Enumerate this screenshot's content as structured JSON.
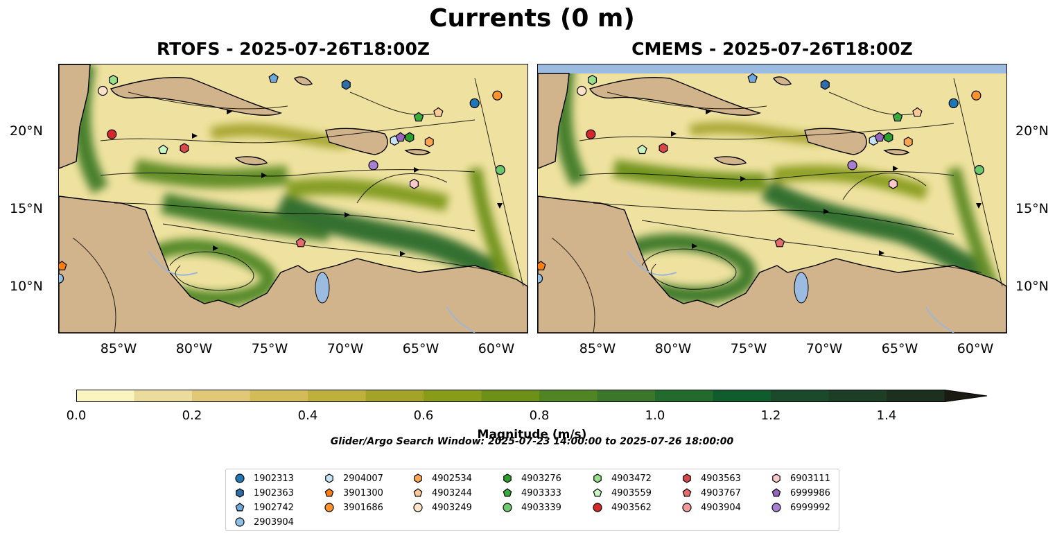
{
  "title": "Currents (0 m)",
  "panels": [
    {
      "title": "RTOFS - 2025-07-26T18:00Z"
    },
    {
      "title": "CMEMS - 2025-07-26T18:00Z"
    }
  ],
  "map": {
    "lon_range": [
      -89,
      -58
    ],
    "lat_range": [
      7,
      24.3
    ],
    "lon_ticks": [
      "85°W",
      "80°W",
      "75°W",
      "70°W",
      "65°W",
      "60°W"
    ],
    "lat_ticks": [
      "20°N",
      "15°N",
      "10°N"
    ],
    "colors": {
      "ocean_low": "#f7f0b8",
      "land": "#d2b48c",
      "coastline": "#000000",
      "lakes": "#9bbbe0",
      "rivers": "#9fb7d4"
    }
  },
  "colorbar": {
    "label": "Magnitude (m/s)",
    "ticks": [
      "0.0",
      "0.2",
      "0.4",
      "0.6",
      "0.8",
      "1.0",
      "1.2",
      "1.4"
    ],
    "range": [
      0,
      1.5
    ],
    "extend": "max",
    "colors": [
      "#faf4be",
      "#ebdb9c",
      "#e0c877",
      "#d4bb5a",
      "#bdb03c",
      "#a3a32a",
      "#889c1a",
      "#6c9018",
      "#518423",
      "#3a7728",
      "#226b2c",
      "#0f5c2d",
      "#1a4a2a",
      "#1c3e25",
      "#1c3020"
    ]
  },
  "search_window": "Glider/Argo Search Window: 2025-07-23 14:00:00 to 2025-07-26 18:00:00",
  "legend": [
    {
      "id": "1902313",
      "marker": "circle",
      "color": "#1f77b4"
    },
    {
      "id": "1902363",
      "marker": "hexagon",
      "color": "#2e6da8"
    },
    {
      "id": "1902742",
      "marker": "pentagon",
      "color": "#6fa8dc"
    },
    {
      "id": "2903904",
      "marker": "circle",
      "color": "#8fc1e6"
    },
    {
      "id": "2904007",
      "marker": "hexagon",
      "color": "#c7e4f7"
    },
    {
      "id": "3901300",
      "marker": "pentagon",
      "color": "#ff7f0e"
    },
    {
      "id": "3901686",
      "marker": "circle",
      "color": "#ff922b"
    },
    {
      "id": "4902534",
      "marker": "hexagon",
      "color": "#ffa552"
    },
    {
      "id": "4903244",
      "marker": "pentagon",
      "color": "#ffc996"
    },
    {
      "id": "4903249",
      "marker": "circle",
      "color": "#ffe3c8"
    },
    {
      "id": "4903276",
      "marker": "hexagon",
      "color": "#2ca02c"
    },
    {
      "id": "4903333",
      "marker": "pentagon",
      "color": "#3aac3a"
    },
    {
      "id": "4903339",
      "marker": "circle",
      "color": "#6cc86c"
    },
    {
      "id": "4903472",
      "marker": "hexagon",
      "color": "#98df8a"
    },
    {
      "id": "4903559",
      "marker": "pentagon",
      "color": "#c9f5c0"
    },
    {
      "id": "4903562",
      "marker": "circle",
      "color": "#d62728"
    },
    {
      "id": "4903563",
      "marker": "hexagon",
      "color": "#d94848"
    },
    {
      "id": "4903767",
      "marker": "pentagon",
      "color": "#e66b6b"
    },
    {
      "id": "4903904",
      "marker": "circle",
      "color": "#f09a9a"
    },
    {
      "id": "6903111",
      "marker": "hexagon",
      "color": "#ffc9c9"
    },
    {
      "id": "6999986",
      "marker": "pentagon",
      "color": "#9467bd"
    },
    {
      "id": "6999992",
      "marker": "circle",
      "color": "#a77fd0"
    }
  ],
  "float_positions": {
    "rtofs": [
      {
        "id": "1902313",
        "lon": -61.5,
        "lat": 21.8
      },
      {
        "id": "1902363",
        "lon": -70.0,
        "lat": 23.0
      },
      {
        "id": "1902742",
        "lon": -74.8,
        "lat": 23.4
      },
      {
        "id": "2903904",
        "lon": -89.0,
        "lat": 10.5
      },
      {
        "id": "2904007",
        "lon": -66.8,
        "lat": 19.4
      },
      {
        "id": "3901300",
        "lon": -88.8,
        "lat": 11.3
      },
      {
        "id": "3901686",
        "lon": -60.0,
        "lat": 22.3
      },
      {
        "id": "4902534",
        "lon": -64.5,
        "lat": 19.3
      },
      {
        "id": "4903244",
        "lon": -63.9,
        "lat": 21.2
      },
      {
        "id": "4903249",
        "lon": -86.1,
        "lat": 22.6
      },
      {
        "id": "4903276",
        "lon": -65.8,
        "lat": 19.6
      },
      {
        "id": "4903333",
        "lon": -65.2,
        "lat": 20.9
      },
      {
        "id": "4903339",
        "lon": -59.8,
        "lat": 17.5
      },
      {
        "id": "4903472",
        "lon": -85.4,
        "lat": 23.3
      },
      {
        "id": "4903559",
        "lon": -82.1,
        "lat": 18.8
      },
      {
        "id": "4903562",
        "lon": -85.5,
        "lat": 19.8
      },
      {
        "id": "4903563",
        "lon": -80.7,
        "lat": 18.9
      },
      {
        "id": "4903767",
        "lon": -73.0,
        "lat": 12.8
      },
      {
        "id": "6903111",
        "lon": -65.5,
        "lat": 16.6
      },
      {
        "id": "6999986",
        "lon": -66.4,
        "lat": 19.6
      },
      {
        "id": "6999992",
        "lon": -68.2,
        "lat": 17.8
      }
    ],
    "cmems": [
      {
        "id": "1902313",
        "lon": -61.5,
        "lat": 21.8
      },
      {
        "id": "1902363",
        "lon": -70.0,
        "lat": 23.0
      },
      {
        "id": "1902742",
        "lon": -74.8,
        "lat": 23.4
      },
      {
        "id": "2903904",
        "lon": -89.0,
        "lat": 10.5
      },
      {
        "id": "2904007",
        "lon": -66.8,
        "lat": 19.4
      },
      {
        "id": "3901300",
        "lon": -88.8,
        "lat": 11.3
      },
      {
        "id": "3901686",
        "lon": -60.0,
        "lat": 22.3
      },
      {
        "id": "4902534",
        "lon": -64.5,
        "lat": 19.3
      },
      {
        "id": "4903244",
        "lon": -63.9,
        "lat": 21.2
      },
      {
        "id": "4903249",
        "lon": -86.1,
        "lat": 22.6
      },
      {
        "id": "4903276",
        "lon": -65.8,
        "lat": 19.6
      },
      {
        "id": "4903333",
        "lon": -65.2,
        "lat": 20.9
      },
      {
        "id": "4903339",
        "lon": -59.8,
        "lat": 17.5
      },
      {
        "id": "4903472",
        "lon": -85.4,
        "lat": 23.3
      },
      {
        "id": "4903559",
        "lon": -82.1,
        "lat": 18.8
      },
      {
        "id": "4903562",
        "lon": -85.5,
        "lat": 19.8
      },
      {
        "id": "4903563",
        "lon": -80.7,
        "lat": 18.9
      },
      {
        "id": "4903767",
        "lon": -73.0,
        "lat": 12.8
      },
      {
        "id": "6903111",
        "lon": -65.5,
        "lat": 16.6
      },
      {
        "id": "6999986",
        "lon": -66.4,
        "lat": 19.6
      },
      {
        "id": "6999992",
        "lon": -68.2,
        "lat": 17.8
      }
    ]
  }
}
